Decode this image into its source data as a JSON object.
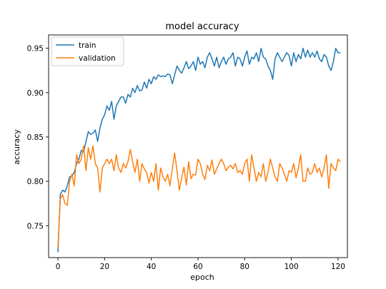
{
  "chart_data": {
    "type": "line",
    "title": "model accuracy",
    "xlabel": "epoch",
    "ylabel": "accuracy",
    "xlim": [
      -4,
      124
    ],
    "ylim": [
      0.714,
      0.965
    ],
    "xticks": [
      0,
      20,
      40,
      60,
      80,
      100,
      120
    ],
    "yticks": [
      0.75,
      0.8,
      0.85,
      0.9,
      0.95
    ],
    "ytick_labels": [
      "0.75",
      "0.80",
      "0.85",
      "0.90",
      "0.95"
    ],
    "legend_position": "upper-left",
    "grid": false,
    "series": [
      {
        "name": "train",
        "color": "#1f77b4",
        "values": [
          0.72,
          0.785,
          0.79,
          0.788,
          0.795,
          0.805,
          0.806,
          0.81,
          0.82,
          0.825,
          0.835,
          0.833,
          0.845,
          0.856,
          0.853,
          0.854,
          0.858,
          0.845,
          0.86,
          0.87,
          0.875,
          0.885,
          0.88,
          0.89,
          0.87,
          0.885,
          0.89,
          0.895,
          0.895,
          0.888,
          0.898,
          0.895,
          0.905,
          0.9,
          0.908,
          0.902,
          0.903,
          0.912,
          0.905,
          0.915,
          0.91,
          0.918,
          0.915,
          0.92,
          0.918,
          0.919,
          0.918,
          0.921,
          0.92,
          0.91,
          0.92,
          0.93,
          0.925,
          0.922,
          0.928,
          0.935,
          0.927,
          0.93,
          0.935,
          0.925,
          0.94,
          0.932,
          0.935,
          0.928,
          0.94,
          0.945,
          0.938,
          0.93,
          0.94,
          0.928,
          0.935,
          0.94,
          0.932,
          0.938,
          0.94,
          0.945,
          0.93,
          0.94,
          0.938,
          0.93,
          0.94,
          0.947,
          0.932,
          0.94,
          0.938,
          0.945,
          0.935,
          0.95,
          0.94,
          0.938,
          0.93,
          0.925,
          0.915,
          0.938,
          0.945,
          0.94,
          0.935,
          0.94,
          0.945,
          0.942,
          0.93,
          0.945,
          0.935,
          0.943,
          0.938,
          0.95,
          0.94,
          0.948,
          0.94,
          0.945,
          0.94,
          0.947,
          0.938,
          0.935,
          0.943,
          0.94,
          0.93,
          0.925,
          0.935,
          0.95,
          0.945,
          0.945
        ]
      },
      {
        "name": "validation",
        "color": "#ff7f0e",
        "values": [
          0.725,
          0.78,
          0.785,
          0.775,
          0.773,
          0.8,
          0.808,
          0.795,
          0.83,
          0.82,
          0.825,
          0.84,
          0.812,
          0.838,
          0.825,
          0.84,
          0.82,
          0.815,
          0.788,
          0.815,
          0.82,
          0.825,
          0.82,
          0.825,
          0.812,
          0.83,
          0.815,
          0.81,
          0.82,
          0.815,
          0.822,
          0.836,
          0.822,
          0.81,
          0.825,
          0.8,
          0.82,
          0.814,
          0.81,
          0.798,
          0.81,
          0.8,
          0.82,
          0.79,
          0.815,
          0.805,
          0.8,
          0.808,
          0.795,
          0.814,
          0.832,
          0.812,
          0.79,
          0.804,
          0.816,
          0.796,
          0.822,
          0.803,
          0.808,
          0.807,
          0.825,
          0.82,
          0.808,
          0.802,
          0.818,
          0.812,
          0.824,
          0.808,
          0.814,
          0.82,
          0.825,
          0.82,
          0.812,
          0.816,
          0.818,
          0.814,
          0.82,
          0.81,
          0.812,
          0.808,
          0.82,
          0.825,
          0.8,
          0.83,
          0.815,
          0.8,
          0.81,
          0.805,
          0.82,
          0.8,
          0.81,
          0.825,
          0.815,
          0.805,
          0.8,
          0.82,
          0.815,
          0.808,
          0.8,
          0.812,
          0.81,
          0.82,
          0.804,
          0.815,
          0.83,
          0.8,
          0.8,
          0.815,
          0.808,
          0.81,
          0.82,
          0.81,
          0.815,
          0.805,
          0.815,
          0.83,
          0.792,
          0.82,
          0.815,
          0.812,
          0.825,
          0.822
        ]
      }
    ]
  }
}
